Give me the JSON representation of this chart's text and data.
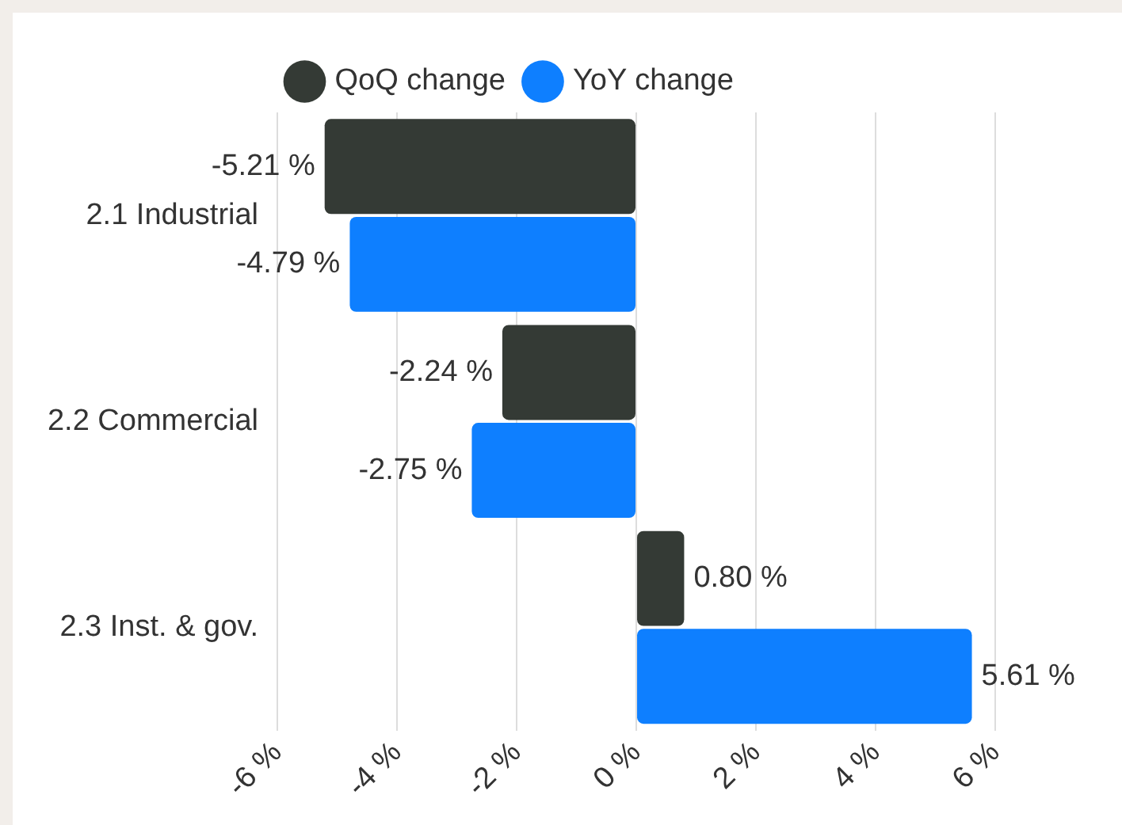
{
  "chart_data": {
    "type": "bar",
    "orientation": "horizontal",
    "categories": [
      "2.1 Industrial",
      "2.2 Commercial",
      "2.3 Inst. & gov."
    ],
    "series": [
      {
        "name": "QoQ change",
        "color": "#343a35",
        "values": [
          -5.21,
          -2.24,
          0.8
        ],
        "value_labels": [
          "-5.21 %",
          "-2.24 %",
          "0.80 %"
        ]
      },
      {
        "name": "YoY change",
        "color": "#0e7fff",
        "values": [
          -4.79,
          -2.75,
          5.61
        ],
        "value_labels": [
          "-4.79 %",
          "-2.75 %",
          "5.61 %"
        ]
      }
    ],
    "xlim": [
      -6,
      6
    ],
    "xticks": [
      {
        "value": -6,
        "label": "-6 %"
      },
      {
        "value": -4,
        "label": "-4 %"
      },
      {
        "value": -2,
        "label": "-2 %"
      },
      {
        "value": 0,
        "label": "0 %"
      },
      {
        "value": 2,
        "label": "2 %"
      },
      {
        "value": 4,
        "label": "4 %"
      },
      {
        "value": 6,
        "label": "6 %"
      }
    ],
    "grid": "x",
    "legend": "top",
    "marker": "circle"
  }
}
